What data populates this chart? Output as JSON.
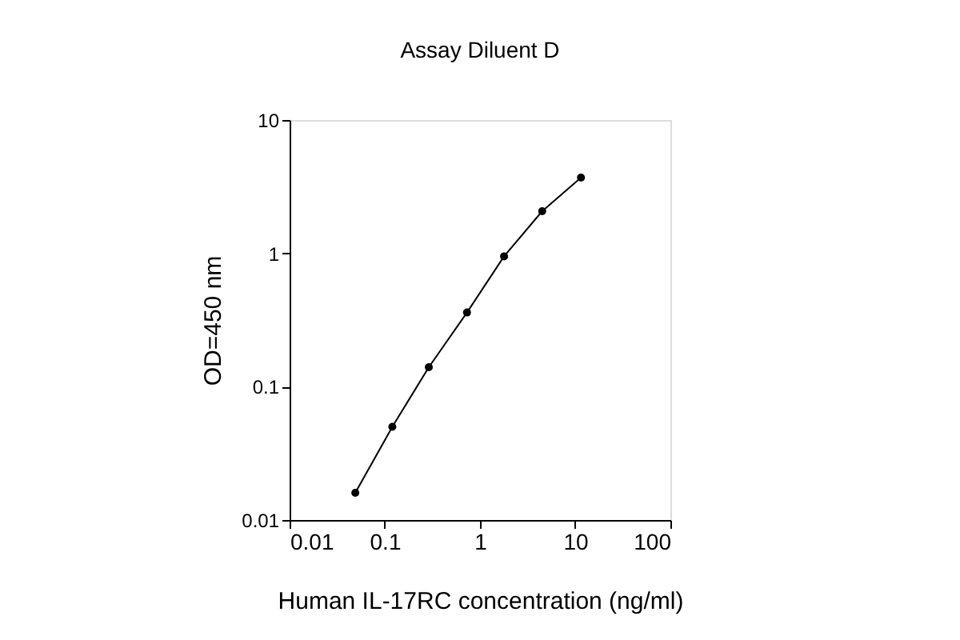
{
  "chart_data": {
    "type": "line",
    "title": "Assay Diluent D",
    "xlabel": "Human IL-17RC concentration (ng/ml)",
    "ylabel": "OD=450 nm",
    "x": [
      0.049,
      0.12,
      0.29,
      0.73,
      1.79,
      4.5,
      11.5
    ],
    "series": [
      {
        "color": "#000000",
        "values": [
          0.016,
          0.05,
          0.14,
          0.36,
          0.95,
          2.07,
          3.7
        ]
      }
    ],
    "xlim": [
      0.01,
      100
    ],
    "ylim": [
      0.01,
      10
    ],
    "xticks": [
      0.01,
      0.1,
      1,
      10,
      100
    ],
    "yticks": [
      0.01,
      0.1,
      1,
      10
    ],
    "log": "xy",
    "grid": false,
    "marker": "circle",
    "line_style": "solid"
  }
}
